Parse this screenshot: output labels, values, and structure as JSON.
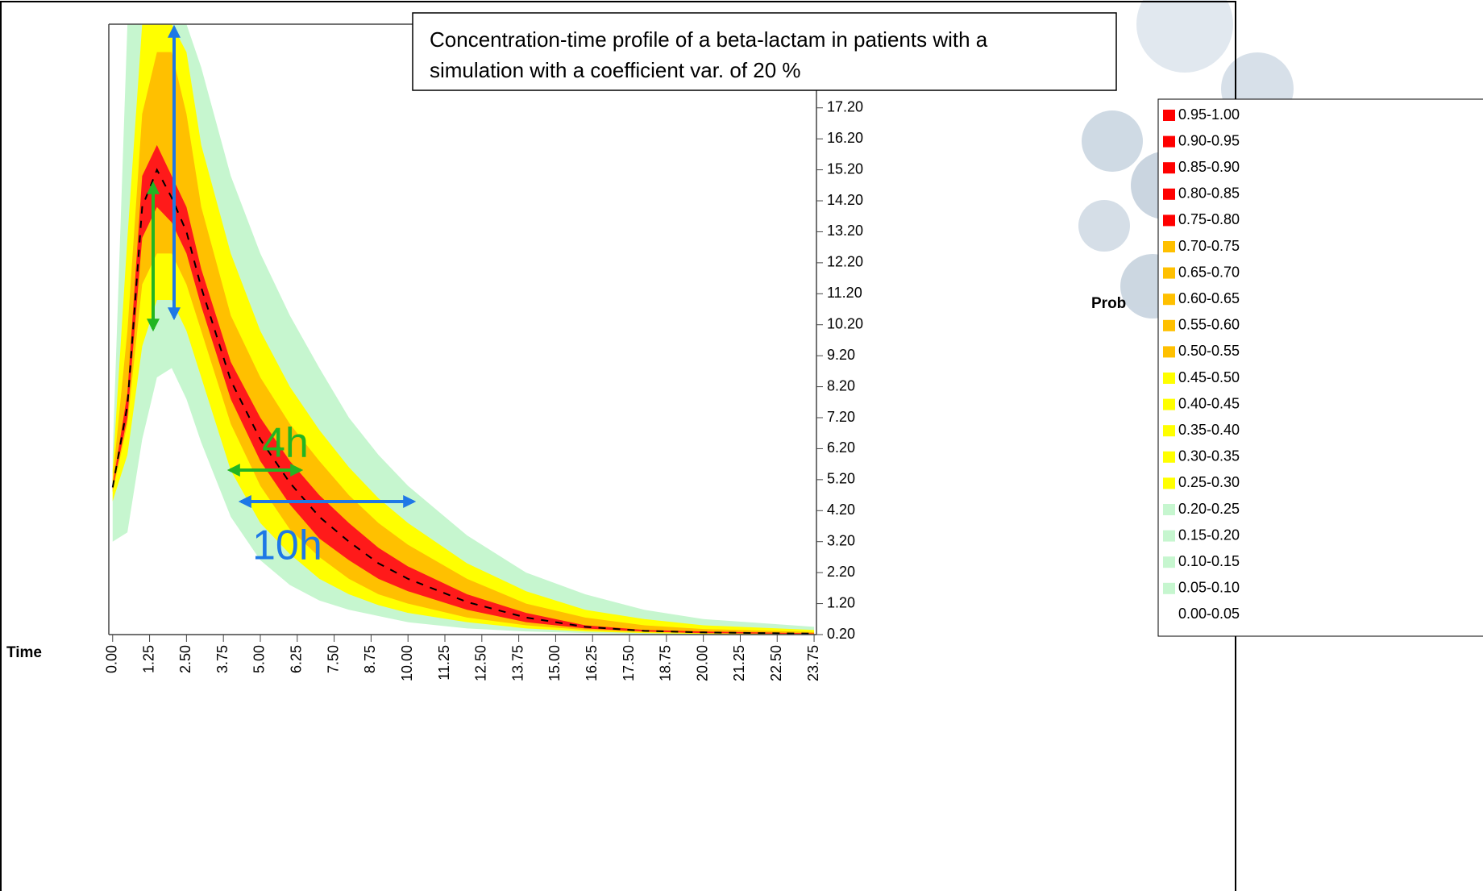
{
  "chart_data": {
    "type": "band",
    "title": [
      "Concentration-time profile of a beta-lactam in patients with a",
      "simulation with a coefficient var. of 20 %"
    ],
    "x_label": "Time",
    "x": [
      0,
      0.5,
      1,
      1.5,
      2,
      2.5,
      3,
      4,
      5,
      6,
      7,
      8,
      9,
      10,
      12,
      14,
      16,
      18,
      20,
      23.75
    ],
    "bands": [
      {
        "color": "#c6f6cf",
        "upper": [
          6,
          19.9,
          19.9,
          19.9,
          19.9,
          19.9,
          18.5,
          15,
          12.5,
          10.5,
          8.8,
          7.2,
          6.0,
          5.0,
          3.4,
          2.2,
          1.5,
          1.0,
          0.7,
          0.45
        ],
        "lower": [
          3.2,
          3.5,
          6.5,
          8.5,
          8.8,
          7.8,
          6.4,
          4.0,
          2.6,
          1.8,
          1.3,
          1.0,
          0.8,
          0.6,
          0.4,
          0.3,
          0.25,
          0.22,
          0.21,
          0.2
        ]
      },
      {
        "color": "#ffff00",
        "upper": [
          5.5,
          13,
          19.9,
          19.9,
          19.9,
          19,
          16,
          12.5,
          10,
          8.2,
          6.8,
          5.6,
          4.6,
          3.8,
          2.5,
          1.6,
          1.0,
          0.7,
          0.5,
          0.35
        ],
        "lower": [
          4.5,
          6,
          9.5,
          11,
          11,
          10,
          8.5,
          5.5,
          3.8,
          2.8,
          2.0,
          1.5,
          1.15,
          0.9,
          0.6,
          0.4,
          0.3,
          0.25,
          0.22,
          0.2
        ]
      },
      {
        "color": "#ffc000",
        "upper": [
          5.2,
          10,
          17,
          19,
          19,
          17,
          14,
          10.5,
          8.5,
          7,
          5.8,
          4.7,
          3.8,
          3.1,
          2.0,
          1.2,
          0.75,
          0.5,
          0.38,
          0.28
        ],
        "lower": [
          4.8,
          7,
          11.5,
          12.5,
          12.5,
          11.5,
          10,
          7,
          5,
          3.6,
          2.7,
          2.0,
          1.5,
          1.2,
          0.75,
          0.5,
          0.35,
          0.28,
          0.24,
          0.21
        ]
      },
      {
        "color": "#ff1a1a",
        "upper": [
          5.0,
          8,
          15,
          16,
          15,
          14,
          12,
          9,
          7.2,
          5.8,
          4.7,
          3.8,
          3.0,
          2.4,
          1.5,
          0.9,
          0.5,
          0.35,
          0.3,
          0.24
        ],
        "lower": [
          4.9,
          7.2,
          13,
          14,
          13.5,
          12.5,
          10.8,
          7.8,
          5.8,
          4.4,
          3.3,
          2.6,
          2.0,
          1.6,
          1.0,
          0.6,
          0.4,
          0.3,
          0.25,
          0.22
        ]
      }
    ],
    "series": [
      {
        "color": "#000000",
        "line_style": "dashed",
        "values": [
          4.95,
          7.6,
          14,
          15.2,
          14.3,
          13.2,
          11.4,
          8.4,
          6.5,
          5.1,
          4.0,
          3.2,
          2.5,
          2.0,
          1.25,
          0.75,
          0.45,
          0.32,
          0.27,
          0.23
        ]
      }
    ],
    "xlim": [
      -0.13,
      23.83
    ],
    "ylim": [
      0.2,
      19.9
    ],
    "y_axis_side": "right",
    "xticks": [
      {
        "value": 0,
        "label": "0.00"
      },
      {
        "value": 1.25,
        "label": "1.25"
      },
      {
        "value": 2.5,
        "label": "2.50"
      },
      {
        "value": 3.75,
        "label": "3.75"
      },
      {
        "value": 5,
        "label": "5.00"
      },
      {
        "value": 6.25,
        "label": "6.25"
      },
      {
        "value": 7.5,
        "label": "7.50"
      },
      {
        "value": 8.75,
        "label": "8.75"
      },
      {
        "value": 10,
        "label": "10.00"
      },
      {
        "value": 11.25,
        "label": "11.25"
      },
      {
        "value": 12.5,
        "label": "12.50"
      },
      {
        "value": 13.75,
        "label": "13.75"
      },
      {
        "value": 15,
        "label": "15.00"
      },
      {
        "value": 16.25,
        "label": "16.25"
      },
      {
        "value": 17.5,
        "label": "17.50"
      },
      {
        "value": 18.75,
        "label": "18.75"
      },
      {
        "value": 20,
        "label": "20.00"
      },
      {
        "value": 21.25,
        "label": "21.25"
      },
      {
        "value": 22.5,
        "label": "22.50"
      },
      {
        "value": 23.75,
        "label": "23.75"
      }
    ],
    "yticks": [
      {
        "value": 0.2,
        "label": "0.20"
      },
      {
        "value": 1.2,
        "label": "1.20"
      },
      {
        "value": 2.2,
        "label": "2.20"
      },
      {
        "value": 3.2,
        "label": "3.20"
      },
      {
        "value": 4.2,
        "label": "4.20"
      },
      {
        "value": 5.2,
        "label": "5.20"
      },
      {
        "value": 6.2,
        "label": "6.20"
      },
      {
        "value": 7.2,
        "label": "7.20"
      },
      {
        "value": 8.2,
        "label": "8.20"
      },
      {
        "value": 9.2,
        "label": "9.20"
      },
      {
        "value": 10.2,
        "label": "10.20"
      },
      {
        "value": 11.2,
        "label": "11.20"
      },
      {
        "value": 12.2,
        "label": "12.20"
      },
      {
        "value": 13.2,
        "label": "13.20"
      },
      {
        "value": 14.2,
        "label": "14.20"
      },
      {
        "value": 15.2,
        "label": "15.20"
      },
      {
        "value": 16.2,
        "label": "16.20"
      },
      {
        "value": 17.2,
        "label": "17.20"
      }
    ],
    "legend": {
      "title": "Prob",
      "position": "right",
      "items": [
        {
          "label": "0.95-1.00",
          "color": "#ff0000"
        },
        {
          "label": "0.90-0.95",
          "color": "#ff0000"
        },
        {
          "label": "0.85-0.90",
          "color": "#ff0000"
        },
        {
          "label": "0.80-0.85",
          "color": "#ff0000"
        },
        {
          "label": "0.75-0.80",
          "color": "#ff0000"
        },
        {
          "label": "0.70-0.75",
          "color": "#ffc000"
        },
        {
          "label": "0.65-0.70",
          "color": "#ffc000"
        },
        {
          "label": "0.60-0.65",
          "color": "#ffc000"
        },
        {
          "label": "0.55-0.60",
          "color": "#ffc000"
        },
        {
          "label": "0.50-0.55",
          "color": "#ffc000"
        },
        {
          "label": "0.45-0.50",
          "color": "#ffff00"
        },
        {
          "label": "0.40-0.45",
          "color": "#ffff00"
        },
        {
          "label": "0.35-0.40",
          "color": "#ffff00"
        },
        {
          "label": "0.30-0.35",
          "color": "#ffff00"
        },
        {
          "label": "0.25-0.30",
          "color": "#ffff00"
        },
        {
          "label": "0.20-0.25",
          "color": "#c6f6cf"
        },
        {
          "label": "0.15-0.20",
          "color": "#c6f6cf"
        },
        {
          "label": "0.10-0.15",
          "color": "#c6f6cf"
        },
        {
          "label": "0.05-0.10",
          "color": "#c6f6cf"
        },
        {
          "label": "0.00-0.05",
          "color": "#ffffff"
        }
      ]
    },
    "annotations": [
      {
        "text": "4h",
        "color": "#22b522"
      },
      {
        "text": "10h",
        "color": "#1e78e6"
      }
    ]
  }
}
